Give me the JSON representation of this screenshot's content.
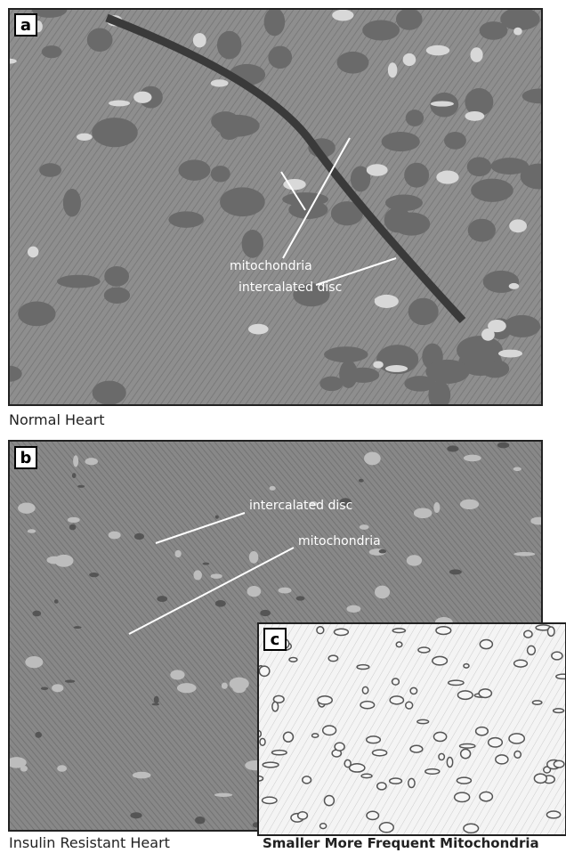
{
  "panels": [
    {
      "letter": "a",
      "caption": "Normal Heart",
      "annotations": [
        "mitochondria",
        "intercalated disc"
      ]
    },
    {
      "letter": "b",
      "caption": "Insulin Resistant Heart",
      "annotations": [
        "intercalated disc",
        "mitochondria"
      ]
    },
    {
      "letter": "c",
      "caption": "Smaller More Frequent Mitochondria"
    }
  ]
}
